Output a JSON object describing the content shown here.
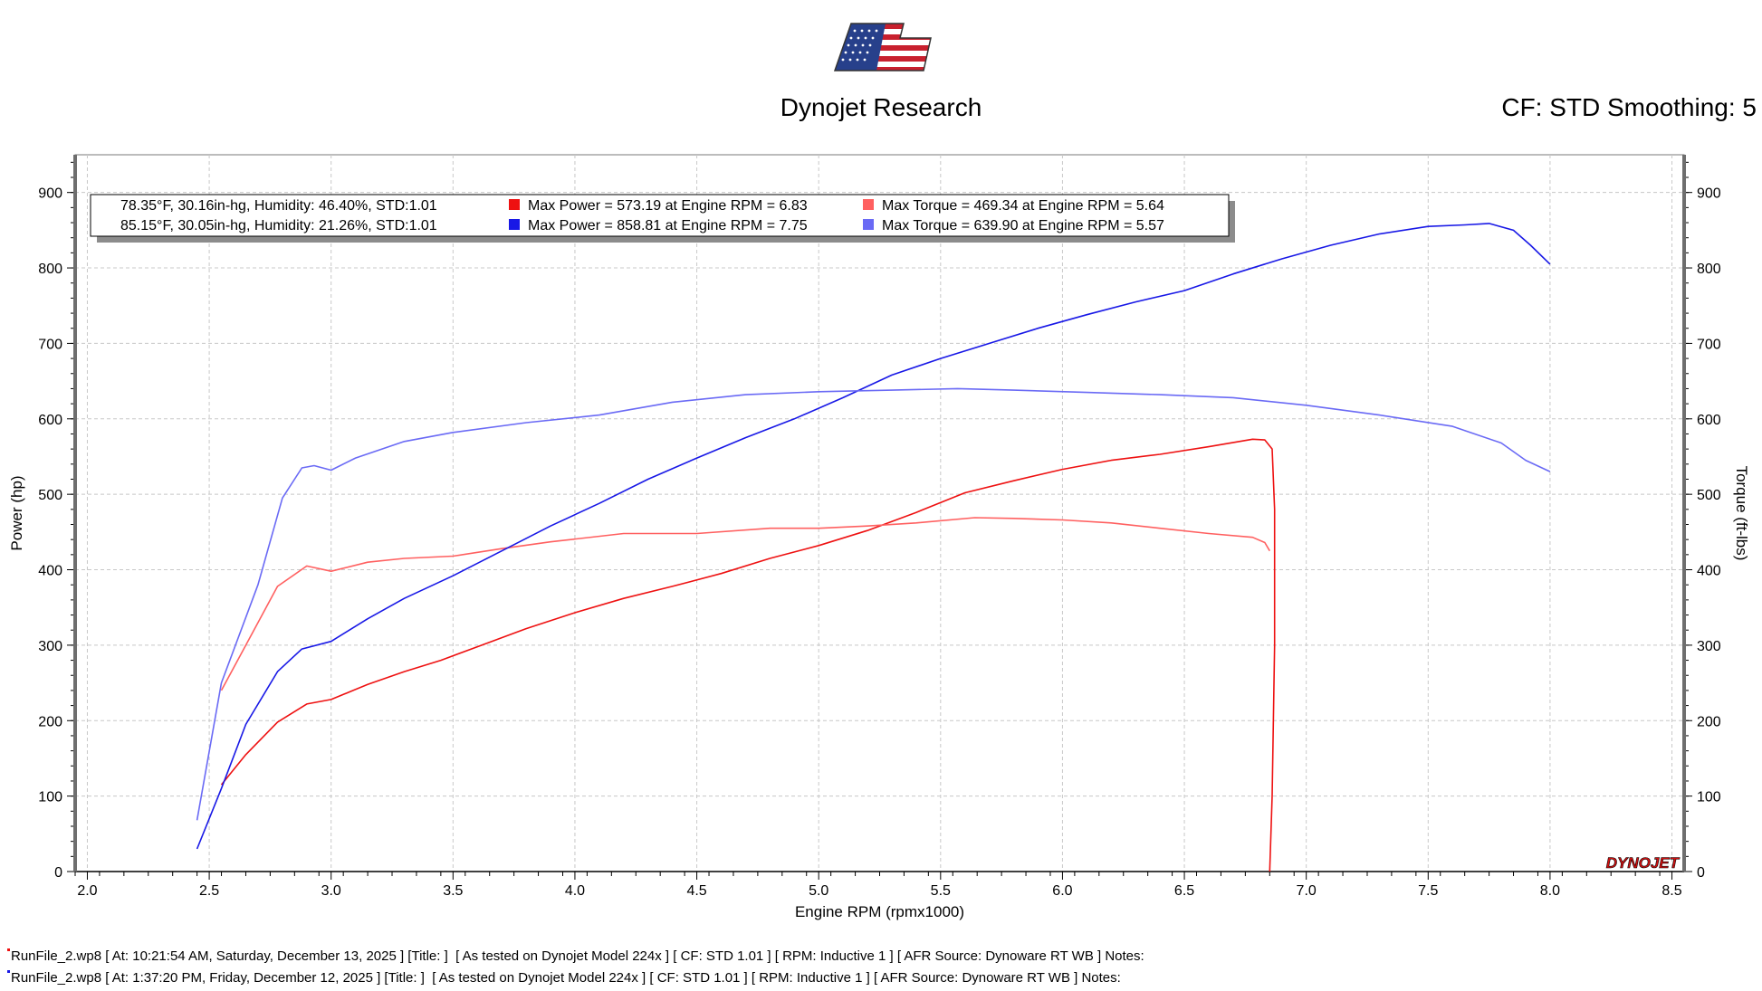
{
  "header": {
    "title": "Dynojet Research",
    "cf_text": "CF: STD Smoothing: 5"
  },
  "colors": {
    "run1_power": "#ee1111",
    "run1_torque": "#ff6060",
    "run2_power": "#1818e6",
    "run2_torque": "#6a6af5"
  },
  "chart_data": {
    "type": "line",
    "title": "",
    "xlabel": "Engine RPM (rpmx1000)",
    "ylabel": "Power (hp)",
    "y2label": "Torque (ft-lbs)",
    "xlim": [
      1.95,
      8.55
    ],
    "ylim": [
      0,
      950
    ],
    "y2lim": [
      0,
      950
    ],
    "x_ticks": [
      "2.0",
      "2.5",
      "3.0",
      "3.5",
      "4.0",
      "4.5",
      "5.0",
      "5.5",
      "6.0",
      "6.5",
      "7.0",
      "7.5",
      "8.0",
      "8.5"
    ],
    "y_ticks": [
      "0",
      "100",
      "200",
      "300",
      "400",
      "500",
      "600",
      "700",
      "800",
      "900"
    ],
    "y2_ticks": [
      "0",
      "100",
      "200",
      "300",
      "400",
      "500",
      "600",
      "700",
      "800",
      "900"
    ],
    "grid": true,
    "legend": {
      "placement": "top-left",
      "rows": [
        {
          "conditions": "78.35°F, 30.16in-hg, Humidity: 46.40%, STD:1.01",
          "power_text": "Max Power = 573.19 at Engine RPM = 6.83",
          "torque_text": "Max Torque = 469.34 at Engine RPM = 5.64"
        },
        {
          "conditions": "85.15°F, 30.05in-hg, Humidity: 21.26%, STD:1.01",
          "power_text": "Max Power = 858.81 at Engine RPM = 7.75",
          "torque_text": "Max Torque = 639.90 at Engine RPM = 5.57"
        }
      ]
    },
    "series": [
      {
        "key": "run1_power",
        "axis": "left",
        "x": [
          2.55,
          2.65,
          2.78,
          2.9,
          3.0,
          3.15,
          3.3,
          3.45,
          3.6,
          3.8,
          4.0,
          4.2,
          4.4,
          4.6,
          4.8,
          5.0,
          5.2,
          5.4,
          5.6,
          5.8,
          6.0,
          6.2,
          6.4,
          6.6,
          6.78,
          6.83,
          6.86,
          6.87,
          6.87,
          6.86,
          6.85
        ],
        "y": [
          115,
          155,
          198,
          222,
          228,
          248,
          265,
          280,
          298,
          322,
          343,
          362,
          378,
          395,
          415,
          432,
          452,
          476,
          502,
          518,
          533,
          545,
          553,
          563,
          573,
          572,
          560,
          480,
          300,
          100,
          0
        ]
      },
      {
        "key": "run1_torque",
        "axis": "right",
        "x": [
          2.55,
          2.65,
          2.78,
          2.9,
          3.0,
          3.15,
          3.3,
          3.5,
          3.7,
          3.9,
          4.2,
          4.5,
          4.8,
          5.0,
          5.2,
          5.4,
          5.64,
          5.8,
          6.0,
          6.2,
          6.4,
          6.6,
          6.78,
          6.83,
          6.85
        ],
        "y": [
          240,
          300,
          378,
          405,
          398,
          410,
          415,
          418,
          428,
          437,
          448,
          448,
          455,
          455,
          458,
          462,
          469,
          468,
          466,
          462,
          455,
          448,
          443,
          436,
          425
        ]
      },
      {
        "key": "run2_power",
        "axis": "left",
        "x": [
          2.45,
          2.55,
          2.65,
          2.78,
          2.88,
          3.0,
          3.15,
          3.3,
          3.5,
          3.7,
          3.9,
          4.1,
          4.3,
          4.5,
          4.7,
          4.9,
          5.1,
          5.3,
          5.5,
          5.7,
          5.9,
          6.1,
          6.3,
          6.5,
          6.7,
          6.9,
          7.1,
          7.3,
          7.5,
          7.65,
          7.75,
          7.85,
          7.92,
          8.0
        ],
        "y": [
          30,
          110,
          195,
          265,
          295,
          305,
          335,
          362,
          392,
          425,
          458,
          488,
          520,
          548,
          575,
          600,
          628,
          658,
          680,
          700,
          720,
          738,
          755,
          770,
          792,
          812,
          830,
          845,
          855,
          857,
          859,
          850,
          830,
          805
        ]
      },
      {
        "key": "run2_torque",
        "axis": "right",
        "x": [
          2.45,
          2.55,
          2.7,
          2.8,
          2.88,
          2.93,
          3.0,
          3.1,
          3.3,
          3.5,
          3.8,
          4.1,
          4.4,
          4.7,
          5.0,
          5.3,
          5.57,
          5.8,
          6.1,
          6.4,
          6.7,
          7.0,
          7.3,
          7.6,
          7.8,
          7.9,
          8.0
        ],
        "y": [
          68,
          250,
          380,
          495,
          535,
          538,
          532,
          548,
          570,
          582,
          595,
          605,
          622,
          632,
          636,
          638,
          640,
          638,
          635,
          632,
          628,
          618,
          605,
          590,
          568,
          545,
          530
        ]
      }
    ],
    "run_notes": [
      "RunFile_2.wp8 [ At: 10:21:54 AM, Saturday, December 13, 2025 ] [Title: ]  [ As tested on Dynojet Model 224x ] [ CF: STD 1.01 ] [ RPM: Inductive 1 ] [ AFR Source: Dynoware RT WB ] Notes:",
      "RunFile_2.wp8 [ At: 1:37:20 PM, Friday, December 12, 2025 ] [Title: ]  [ As tested on Dynojet Model 224x ] [ CF: STD 1.01 ] [ RPM: Inductive 1 ] [ AFR Source: Dynoware RT WB ] Notes:"
    ],
    "watermark": "DYNOJET"
  }
}
